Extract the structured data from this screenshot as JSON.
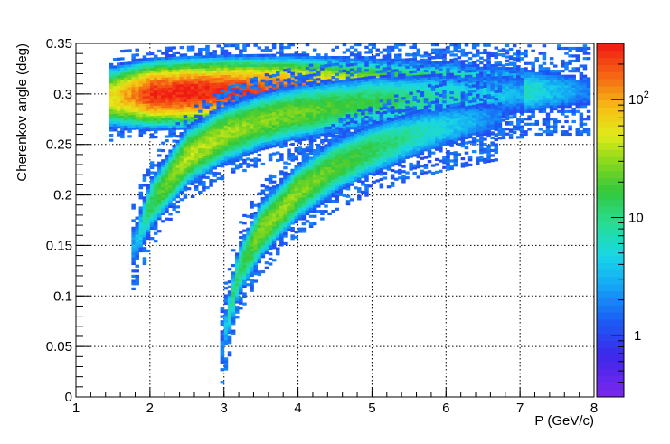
{
  "chart_data": {
    "type": "heatmap",
    "xlabel": "P (GeV/c)",
    "ylabel": "Cherenkov angle (deg)",
    "xlim": [
      1,
      8
    ],
    "ylim": [
      0,
      0.35
    ],
    "x_ticks": [
      "1",
      "2",
      "3",
      "4",
      "5",
      "6",
      "7",
      "8"
    ],
    "y_ticks": [
      "0",
      "0.05",
      "0.1",
      "0.15",
      "0.2",
      "0.25",
      "0.3",
      "0.35"
    ],
    "grid": true,
    "colorbar": {
      "scale": "log",
      "range": [
        0.3,
        300
      ],
      "tick_labels": [
        "1",
        "10",
        "10^2"
      ],
      "colormap": "rainbow (violet-blue-cyan-green-yellow-orange-red)"
    },
    "bands": [
      {
        "p_start": 1.45,
        "p_end": 7.9,
        "theta": [
          [
            1.5,
            0.297
          ],
          [
            2.0,
            0.3
          ],
          [
            3.0,
            0.303
          ],
          [
            4.0,
            0.304
          ],
          [
            5.0,
            0.304
          ],
          [
            6.0,
            0.304
          ],
          [
            7.0,
            0.303
          ],
          [
            7.9,
            0.303
          ]
        ],
        "peak_counts": [
          [
            1.5,
            60
          ],
          [
            2.0,
            250
          ],
          [
            2.5,
            300
          ],
          [
            3.0,
            250
          ],
          [
            4.0,
            160
          ],
          [
            5.0,
            60
          ],
          [
            6.0,
            25
          ],
          [
            7.0,
            8
          ],
          [
            7.9,
            2
          ]
        ]
      },
      {
        "p_start": 1.75,
        "p_end": 7.0,
        "theta": [
          [
            1.8,
            0.15
          ],
          [
            2.0,
            0.19
          ],
          [
            2.5,
            0.238
          ],
          [
            3.0,
            0.26
          ],
          [
            3.5,
            0.273
          ],
          [
            4.0,
            0.282
          ],
          [
            5.0,
            0.292
          ],
          [
            6.0,
            0.297
          ],
          [
            7.0,
            0.3
          ]
        ],
        "peak_counts": [
          [
            1.8,
            3
          ],
          [
            2.0,
            15
          ],
          [
            2.5,
            40
          ],
          [
            3.0,
            35
          ],
          [
            4.0,
            25
          ],
          [
            5.0,
            15
          ],
          [
            6.0,
            8
          ],
          [
            7.0,
            3
          ]
        ]
      },
      {
        "p_start": 2.95,
        "p_end": 6.7,
        "theta": [
          [
            2.97,
            0.045
          ],
          [
            3.0,
            0.06
          ],
          [
            3.2,
            0.125
          ],
          [
            3.5,
            0.165
          ],
          [
            4.0,
            0.203
          ],
          [
            4.5,
            0.228
          ],
          [
            5.0,
            0.245
          ],
          [
            5.5,
            0.258
          ],
          [
            6.0,
            0.268
          ],
          [
            6.7,
            0.278
          ]
        ],
        "peak_counts": [
          [
            2.97,
            2
          ],
          [
            3.1,
            10
          ],
          [
            3.5,
            30
          ],
          [
            4.0,
            30
          ],
          [
            5.0,
            15
          ],
          [
            6.0,
            5
          ],
          [
            6.7,
            2
          ]
        ]
      }
    ]
  }
}
